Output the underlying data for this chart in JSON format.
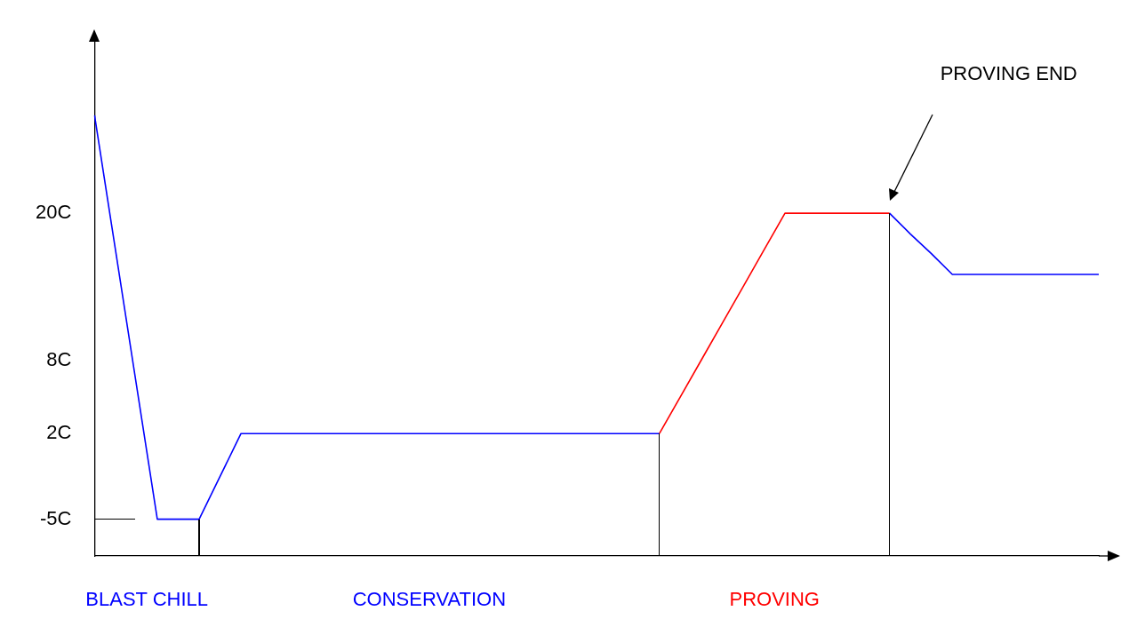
{
  "chart_data": {
    "type": "line",
    "marker": "none",
    "grid": false,
    "legend": false,
    "tick_labels": "y",
    "ylim": [
      -8,
      34
    ],
    "categories": [
      null,
      null,
      null,
      null,
      null,
      null,
      null,
      null,
      null,
      null,
      null,
      null,
      null,
      null,
      null,
      null,
      null,
      null,
      null,
      null,
      null,
      null,
      null,
      null,
      null,
      null,
      null,
      null,
      null,
      null,
      null,
      null,
      null,
      null,
      null,
      null,
      null,
      null,
      null,
      null,
      null,
      null,
      null,
      null,
      null,
      null,
      null,
      null,
      null
    ],
    "yticks": [
      {
        "value": -5,
        "label": "-5C"
      },
      {
        "value": 2,
        "label": "2C"
      },
      {
        "value": 8,
        "label": "8C"
      },
      {
        "value": 20,
        "label": "20C"
      }
    ],
    "series": [
      {
        "color": "#0000ff",
        "values": [
          28,
          17,
          6,
          -5,
          -5,
          -5,
          -1.5,
          2,
          2,
          2,
          2,
          2,
          2,
          2,
          2,
          2,
          2,
          2,
          2,
          2,
          2,
          2,
          2,
          2,
          2,
          2,
          2,
          2,
          null,
          null,
          null,
          null,
          null,
          null,
          null,
          null,
          null,
          null,
          null,
          null,
          null,
          null,
          null,
          null,
          null,
          null,
          null,
          null,
          null
        ]
      },
      {
        "color": "#ff0000",
        "values": [
          null,
          null,
          null,
          null,
          null,
          null,
          null,
          null,
          null,
          null,
          null,
          null,
          null,
          null,
          null,
          null,
          null,
          null,
          null,
          null,
          null,
          null,
          null,
          null,
          null,
          null,
          null,
          2,
          5,
          8,
          11,
          14,
          17,
          20,
          20,
          20,
          20,
          20,
          20,
          null,
          null,
          null,
          null,
          null,
          null,
          null,
          null,
          null,
          null
        ]
      },
      {
        "color": "#0000ff",
        "values": [
          null,
          null,
          null,
          null,
          null,
          null,
          null,
          null,
          null,
          null,
          null,
          null,
          null,
          null,
          null,
          null,
          null,
          null,
          null,
          null,
          null,
          null,
          null,
          null,
          null,
          null,
          null,
          null,
          null,
          null,
          null,
          null,
          null,
          null,
          null,
          null,
          null,
          null,
          20,
          18.3,
          16.7,
          15,
          15,
          15,
          15,
          15,
          15,
          15,
          15
        ]
      }
    ],
    "annotations": [
      "PROVING END",
      "BLAST CHILL",
      "CONSERVATION",
      "PROVING"
    ]
  }
}
